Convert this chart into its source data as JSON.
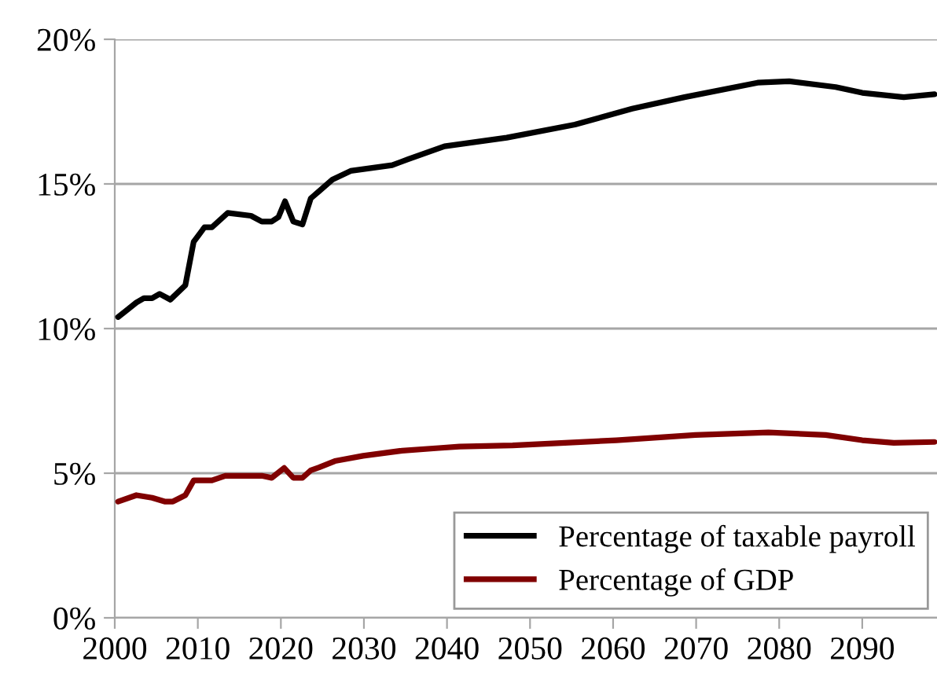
{
  "chart_data": {
    "type": "line",
    "xlim": [
      2000,
      2099
    ],
    "xticks": [
      2000,
      2010,
      2020,
      2030,
      2040,
      2050,
      2060,
      2070,
      2080,
      2090
    ],
    "ylim": [
      0,
      20
    ],
    "yticks": [
      {
        "value": 0,
        "label": "0%"
      },
      {
        "value": 5,
        "label": "5%"
      },
      {
        "value": 10,
        "label": "10%"
      },
      {
        "value": 15,
        "label": "15%"
      },
      {
        "value": 20,
        "label": "20%"
      }
    ],
    "grid": "y",
    "legend": "bottom right",
    "line_style": "solid",
    "marker": "none",
    "series": [
      {
        "name": "Percentage of taxable payroll",
        "color": "#000000",
        "x": [
          2000.4,
          2001.3,
          2002.6,
          2003.5,
          2004.5,
          2005.4,
          2006.7,
          2008.5,
          2009.5,
          2010.8,
          2011.7,
          2013.6,
          2016.4,
          2017.7,
          2018.9,
          2019.7,
          2020.5,
          2021.5,
          2022.6,
          2023.6,
          2024.6,
          2026.2,
          2028.4,
          2033.4,
          2035.3,
          2039.7,
          2047.2,
          2055.4,
          2062.3,
          2068.6,
          2077.4,
          2081.2,
          2086.8,
          2090.0,
          2095.0,
          2098.7
        ],
        "values": [
          10.4,
          10.6,
          10.9,
          11.05,
          11.05,
          11.2,
          11.0,
          11.5,
          13.0,
          13.5,
          13.5,
          14.0,
          13.9,
          13.7,
          13.7,
          13.85,
          14.4,
          13.7,
          13.6,
          14.5,
          14.75,
          15.15,
          15.45,
          15.65,
          15.85,
          16.3,
          16.6,
          17.05,
          17.6,
          18.0,
          18.5,
          18.55,
          18.35,
          18.15,
          18.0,
          18.1
        ]
      },
      {
        "name": "Percentage of GDP",
        "color": "#800000",
        "x": [
          2000.4,
          2002.6,
          2004.5,
          2006.0,
          2007.0,
          2008.5,
          2009.5,
          2011.7,
          2013.3,
          2017.7,
          2018.9,
          2020.4,
          2021.5,
          2022.6,
          2023.6,
          2024.6,
          2026.5,
          2029.9,
          2034.6,
          2039.0,
          2041.5,
          2047.9,
          2054.2,
          2060.4,
          2069.9,
          2078.7,
          2085.6,
          2090.0,
          2093.8,
          2098.7
        ],
        "values": [
          4.02,
          4.24,
          4.15,
          4.02,
          4.02,
          4.24,
          4.75,
          4.75,
          4.91,
          4.91,
          4.84,
          5.18,
          4.84,
          4.84,
          5.1,
          5.2,
          5.42,
          5.6,
          5.78,
          5.87,
          5.92,
          5.96,
          6.05,
          6.14,
          6.32,
          6.41,
          6.32,
          6.14,
          6.05,
          6.08
        ]
      }
    ]
  }
}
